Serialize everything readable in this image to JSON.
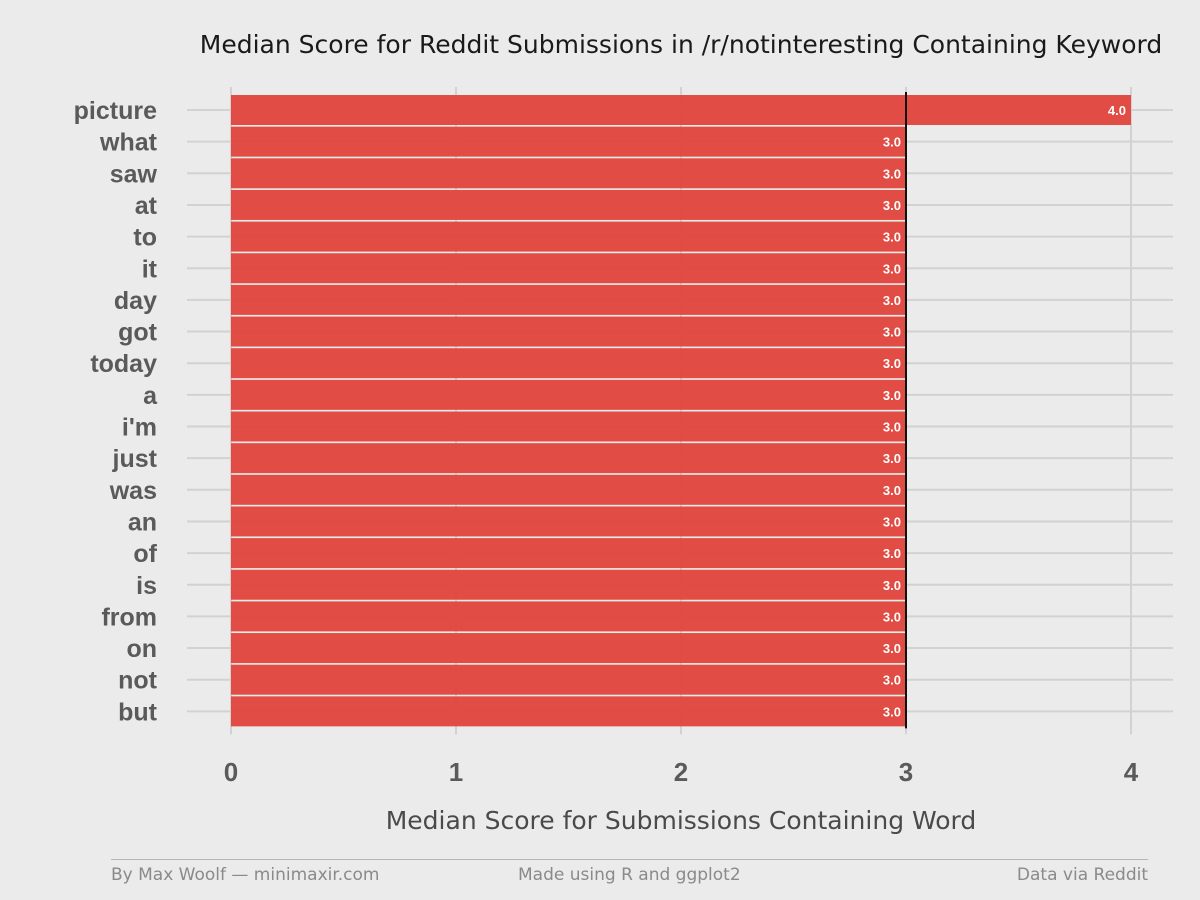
{
  "chart_data": {
    "type": "bar",
    "orientation": "horizontal",
    "title": "Median Score for Reddit Submissions in /r/notinteresting Containing Keyword",
    "xlabel": "Median Score for Submissions Containing Word",
    "ylabel": "",
    "categories": [
      "picture",
      "what",
      "saw",
      "at",
      "to",
      "it",
      "day",
      "got",
      "today",
      "a",
      "i'm",
      "just",
      "was",
      "an",
      "of",
      "is",
      "from",
      "on",
      "not",
      "but"
    ],
    "values": [
      4.0,
      3.0,
      3.0,
      3.0,
      3.0,
      3.0,
      3.0,
      3.0,
      3.0,
      3.0,
      3.0,
      3.0,
      3.0,
      3.0,
      3.0,
      3.0,
      3.0,
      3.0,
      3.0,
      3.0
    ],
    "value_labels": [
      "4.0",
      "3.0",
      "3.0",
      "3.0",
      "3.0",
      "3.0",
      "3.0",
      "3.0",
      "3.0",
      "3.0",
      "3.0",
      "3.0",
      "3.0",
      "3.0",
      "3.0",
      "3.0",
      "3.0",
      "3.0",
      "3.0",
      "3.0"
    ],
    "xlim": [
      0,
      4
    ],
    "xticks": [
      "0",
      "1",
      "2",
      "3",
      "4"
    ],
    "reference_line": 3,
    "bar_color": "#e0443b",
    "grid": true
  },
  "footer": {
    "left": "By Max Woolf — minimaxir.com",
    "center": "Made using R and ggplot2",
    "right": "Data via Reddit"
  }
}
